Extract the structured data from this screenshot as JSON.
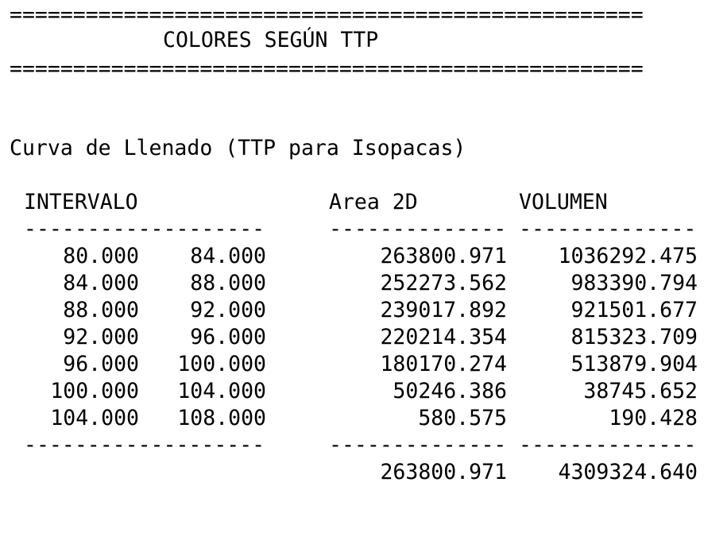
{
  "rule": "==================================================",
  "title": "COLORES SEGÚN TTP",
  "subtitle": "Curva de Llenado (TTP para Isopacas)",
  "headers": {
    "interval": "INTERVALO",
    "area": "Area 2D",
    "volume": "VOLUMEN"
  },
  "separators": {
    "interval": "-------------------",
    "area": "--------------",
    "volume": "--------------"
  },
  "rows": [
    {
      "from": "80.000",
      "to": "84.000",
      "area": "263800.971",
      "volume": "1036292.475"
    },
    {
      "from": "84.000",
      "to": "88.000",
      "area": "252273.562",
      "volume": "983390.794"
    },
    {
      "from": "88.000",
      "to": "92.000",
      "area": "239017.892",
      "volume": "921501.677"
    },
    {
      "from": "92.000",
      "to": "96.000",
      "area": "220214.354",
      "volume": "815323.709"
    },
    {
      "from": "96.000",
      "to": "100.000",
      "area": "180170.274",
      "volume": "513879.904"
    },
    {
      "from": "100.000",
      "to": "104.000",
      "area": "50246.386",
      "volume": "38745.652"
    },
    {
      "from": "104.000",
      "to": "108.000",
      "area": "580.575",
      "volume": "190.428"
    }
  ],
  "totals": {
    "area": "263800.971",
    "volume": "4309324.640"
  }
}
